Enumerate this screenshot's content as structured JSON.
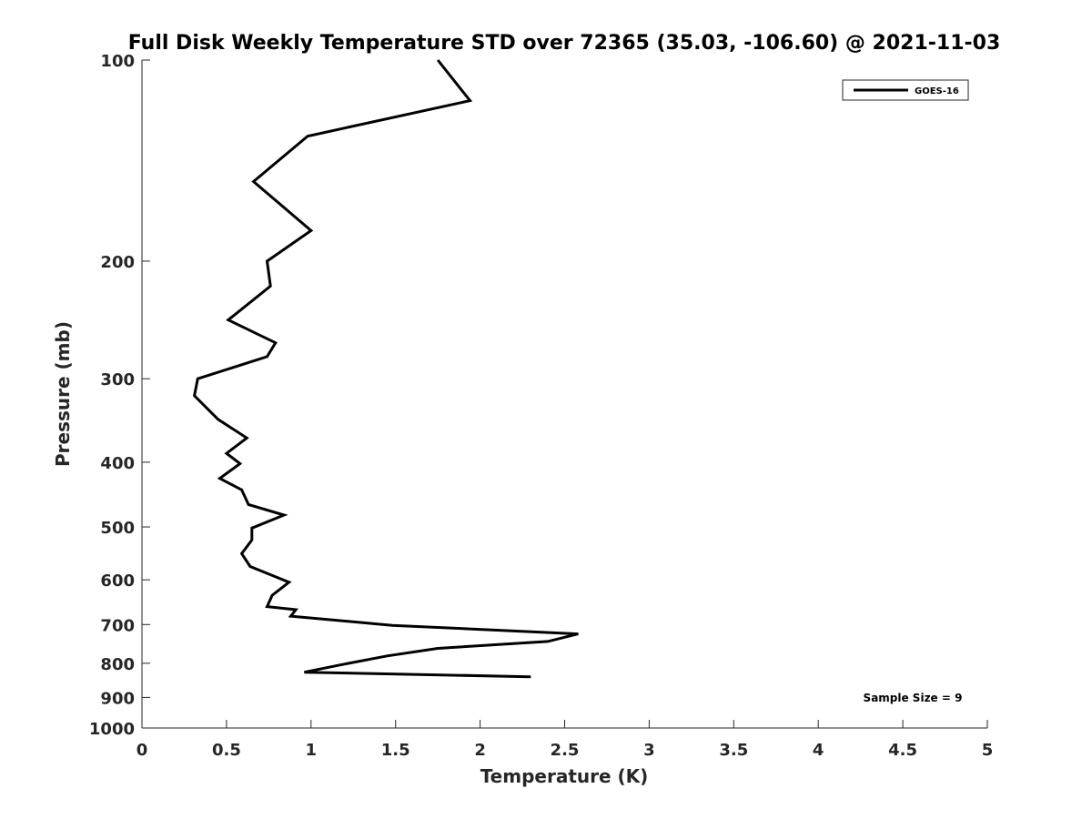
{
  "chart_data": {
    "type": "line",
    "title": "Full Disk Weekly Temperature STD over 72365 (35.03, -106.60) @ 2021-11-03",
    "xlabel": "Temperature (K)",
    "ylabel": "Pressure (mb)",
    "xlim": [
      0,
      5
    ],
    "ylim": [
      100,
      1000
    ],
    "yscale": "log",
    "y_reversed": true,
    "grid": false,
    "legend_position": "top-right",
    "x_ticks": [
      "0",
      "0.5",
      "1",
      "1.5",
      "2",
      "2.5",
      "3",
      "3.5",
      "4",
      "4.5",
      "5"
    ],
    "y_ticks": [
      "100",
      "200",
      "300",
      "400",
      "500",
      "600",
      "700",
      "800",
      "900",
      "1000"
    ],
    "series": [
      {
        "name": "GOES-16",
        "color": "#000000",
        "x": [
          1.75,
          1.94,
          0.98,
          0.66,
          1.0,
          0.74,
          0.76,
          0.51,
          0.79,
          0.74,
          0.33,
          0.31,
          0.45,
          0.62,
          0.5,
          0.58,
          0.46,
          0.59,
          0.63,
          0.84,
          0.65,
          0.65,
          0.59,
          0.64,
          0.87,
          0.77,
          0.74,
          0.91,
          0.88,
          1.48,
          2.58,
          2.4,
          1.75,
          1.45,
          1.2,
          0.96,
          2.3
        ],
        "y": [
          100,
          115,
          130,
          152,
          180,
          200,
          218,
          245,
          265,
          278,
          300,
          318,
          345,
          368,
          388,
          402,
          423,
          440,
          463,
          480,
          502,
          523,
          548,
          573,
          605,
          633,
          658,
          665,
          680,
          702,
          723,
          742,
          760,
          780,
          802,
          825,
          838
        ]
      }
    ],
    "annotations": [
      "Sample Size = 9"
    ]
  }
}
